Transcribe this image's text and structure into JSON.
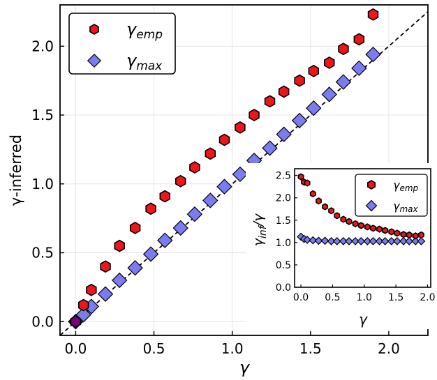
{
  "colors": {
    "emp": "#f0151b",
    "max": "#7b7cf2",
    "edge": "#000000",
    "origin": "#7a007a"
  },
  "chart_data": [
    {
      "type": "scatter",
      "title": "",
      "xlabel": "γ",
      "ylabel": "γ-inferred",
      "xlim": [
        -0.1,
        2.25
      ],
      "ylim": [
        -0.1,
        2.3
      ],
      "xticks": [
        0.0,
        0.5,
        1.0,
        1.5,
        2.0
      ],
      "xtick_labels": [
        "0.0",
        "0.5",
        "1.0",
        "1.5",
        "2.0"
      ],
      "yticks": [
        0.0,
        0.5,
        1.0,
        1.5,
        2.0
      ],
      "ytick_labels": [
        "0.0",
        "0.5",
        "1.0",
        "1.5",
        "2.0"
      ],
      "grid": true,
      "reference_line": "y = x (dashed)",
      "legend_position": "upper-left",
      "series": [
        {
          "name": "γ_emp",
          "legend_main": "γ",
          "legend_sub": "emp",
          "marker": "hexagon",
          "color": "#f0151b",
          "x": [
            0.0,
            0.05,
            0.1,
            0.19,
            0.28,
            0.38,
            0.48,
            0.57,
            0.67,
            0.76,
            0.86,
            0.95,
            1.05,
            1.14,
            1.24,
            1.33,
            1.43,
            1.52,
            1.62,
            1.71,
            1.81,
            1.9
          ],
          "y": [
            0.0,
            0.12,
            0.23,
            0.4,
            0.55,
            0.68,
            0.82,
            0.91,
            1.02,
            1.12,
            1.22,
            1.32,
            1.41,
            1.5,
            1.6,
            1.67,
            1.75,
            1.82,
            1.88,
            1.98,
            2.05,
            2.23
          ]
        },
        {
          "name": "γ_max",
          "legend_main": "γ",
          "legend_sub": "max",
          "marker": "diamond",
          "color": "#7b7cf2",
          "x": [
            0.0,
            0.05,
            0.1,
            0.19,
            0.28,
            0.38,
            0.48,
            0.57,
            0.67,
            0.76,
            0.86,
            0.95,
            1.05,
            1.14,
            1.24,
            1.33,
            1.43,
            1.52,
            1.62,
            1.71,
            1.81,
            1.9
          ],
          "y": [
            0.0,
            0.05,
            0.11,
            0.2,
            0.3,
            0.39,
            0.49,
            0.59,
            0.68,
            0.78,
            0.88,
            0.98,
            1.07,
            1.17,
            1.26,
            1.36,
            1.46,
            1.55,
            1.65,
            1.74,
            1.84,
            1.94
          ]
        }
      ]
    },
    {
      "type": "scatter",
      "title": "",
      "xlabel": "γ",
      "ylabel_main": "γ",
      "ylabel_sub": "inf",
      "ylabel_tail": "/γ",
      "xlim": [
        -0.1,
        2.05
      ],
      "ylim": [
        0.0,
        2.65
      ],
      "xticks": [
        0.0,
        0.5,
        1.0,
        1.5,
        2.0
      ],
      "xtick_labels": [
        "0.0",
        "0.5",
        "1.0",
        "1.5",
        "2.0"
      ],
      "yticks": [
        0.0,
        0.5,
        1.0,
        1.5,
        2.0,
        2.5
      ],
      "ytick_labels": [
        "0.0",
        "0.5",
        "1.0",
        "1.5",
        "2.0",
        "2.5"
      ],
      "grid": false,
      "legend_position": "upper-right",
      "series": [
        {
          "name": "γ_emp",
          "legend_main": "γ",
          "legend_sub": "emp",
          "marker": "hexagon",
          "color": "#f0151b",
          "x": [
            0.0,
            0.05,
            0.1,
            0.19,
            0.28,
            0.38,
            0.48,
            0.57,
            0.67,
            0.76,
            0.86,
            0.95,
            1.05,
            1.14,
            1.24,
            1.33,
            1.43,
            1.52,
            1.62,
            1.71,
            1.81,
            1.9
          ],
          "y": [
            2.47,
            2.35,
            2.33,
            2.09,
            1.93,
            1.8,
            1.71,
            1.6,
            1.52,
            1.47,
            1.42,
            1.38,
            1.35,
            1.32,
            1.3,
            1.27,
            1.24,
            1.21,
            1.18,
            1.17,
            1.15,
            1.17
          ]
        },
        {
          "name": "γ_max",
          "legend_main": "γ",
          "legend_sub": "max",
          "marker": "diamond",
          "color": "#7b7cf2",
          "x": [
            0.0,
            0.05,
            0.1,
            0.19,
            0.28,
            0.38,
            0.48,
            0.57,
            0.67,
            0.76,
            0.86,
            0.95,
            1.05,
            1.14,
            1.24,
            1.33,
            1.43,
            1.52,
            1.62,
            1.71,
            1.81,
            1.9
          ],
          "y": [
            1.13,
            1.08,
            1.06,
            1.05,
            1.04,
            1.04,
            1.03,
            1.03,
            1.03,
            1.03,
            1.03,
            1.03,
            1.03,
            1.03,
            1.03,
            1.03,
            1.03,
            1.03,
            1.03,
            1.03,
            1.03,
            1.03
          ]
        }
      ]
    }
  ]
}
